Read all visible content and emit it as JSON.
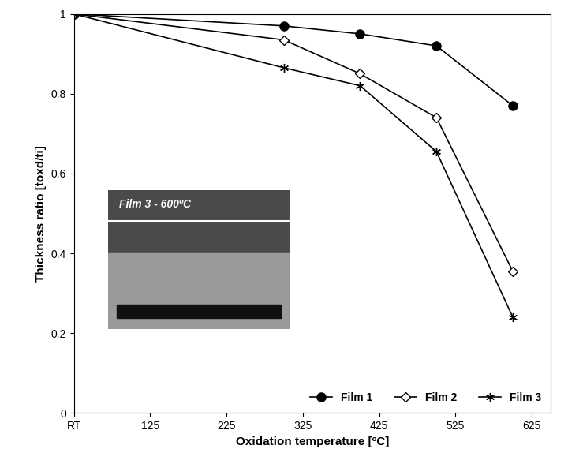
{
  "chart_data": {
    "type": "line",
    "x_label": "Oxidation temperature [ºC]",
    "y_label": "Thickness ratio [toxd/ti]",
    "annotations": [
      "Film 3 - 600ºC"
    ],
    "x": [
      25,
      300,
      400,
      500,
      600
    ],
    "series": [
      {
        "name": "Film 1",
        "color": "#000000",
        "marker": "circle",
        "line_style": "solid",
        "values": [
          1,
          0.97,
          0.95,
          0.92,
          0.77
        ]
      },
      {
        "name": "Film 2",
        "color": "#000000",
        "marker": "open_diamond",
        "line_style": "solid",
        "values": [
          1,
          0.935,
          0.85,
          0.74,
          0.355
        ]
      },
      {
        "name": "Film 3",
        "color": "#000000",
        "marker": "asterisk",
        "line_style": "solid",
        "values": [
          1,
          0.865,
          0.82,
          0.655,
          0.24
        ]
      }
    ],
    "xlim": [
      25,
      650
    ],
    "xticks": [
      {
        "value": 25,
        "label": "RT"
      },
      125,
      225,
      325,
      425,
      525,
      625
    ],
    "ylim": [
      0,
      1
    ],
    "yticks": [
      0,
      0.2,
      0.4,
      0.6,
      0.8,
      1
    ],
    "legend": "lower right",
    "grid": false
  }
}
